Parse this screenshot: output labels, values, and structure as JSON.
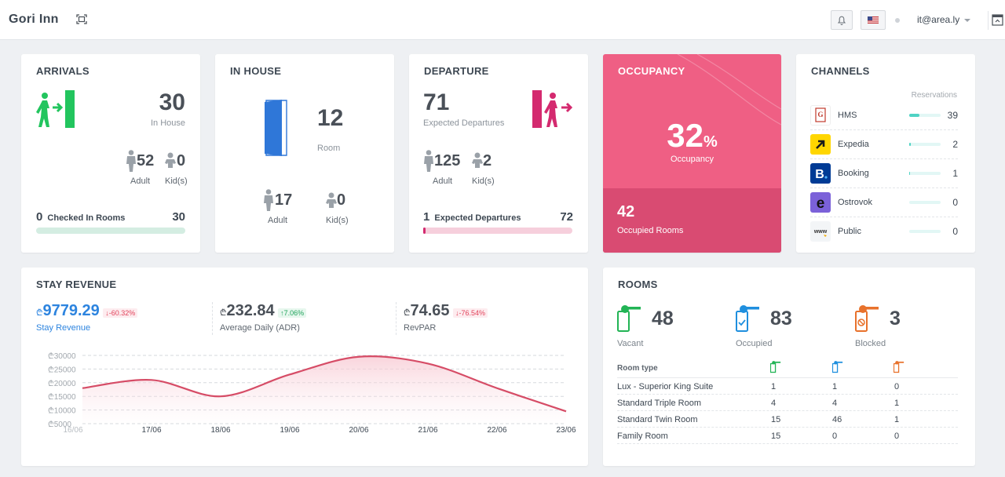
{
  "header": {
    "brand": "Gori Inn",
    "user": "it@area.ly",
    "icons": [
      "expand-icon",
      "bell-icon",
      "us-flag-icon",
      "sidebar-toggle-icon"
    ]
  },
  "arrivals": {
    "title": "ARRIVALS",
    "total": "30",
    "total_label": "In House",
    "adult": "52",
    "adult_label": "Adult",
    "kids": "0",
    "kids_label": "Kid(s)",
    "checked_count": "0",
    "checked_label": "Checked In Rooms",
    "checked_total": "30",
    "progress": 0
  },
  "inhouse": {
    "title": "IN HOUSE",
    "rooms": "12",
    "rooms_label": "Room",
    "adult": "17",
    "adult_label": "Adult",
    "kids": "0",
    "kids_label": "Kid(s)"
  },
  "departure": {
    "title": "DEPARTURE",
    "expected": "71",
    "expected_label": "Expected Departures",
    "adult": "125",
    "adult_label": "Adult",
    "kids": "2",
    "kids_label": "Kid(s)",
    "done_count": "1",
    "done_label": "Expected Departures",
    "done_total": "72",
    "progress": 0.014
  },
  "occupancy": {
    "title": "OCCUPANCY",
    "percent": "32",
    "percent_sign": "%",
    "percent_label": "Occupancy",
    "occupied": "42",
    "occupied_label": "Occupied Rooms"
  },
  "channels": {
    "title": "CHANNELS",
    "column_label": "Reservations",
    "items": [
      {
        "name": "HMS",
        "value": "39",
        "share": 1.0,
        "logo": "hms-logo-icon"
      },
      {
        "name": "Expedia",
        "value": "2",
        "share": 0.05,
        "logo": "expedia-logo-icon"
      },
      {
        "name": "Booking",
        "value": "1",
        "share": 0.03,
        "logo": "booking-logo-icon"
      },
      {
        "name": "Ostrovok",
        "value": "0",
        "share": 0,
        "logo": "ostrovok-logo-icon"
      },
      {
        "name": "Public",
        "value": "0",
        "share": 0,
        "logo": "public-www-logo-icon"
      }
    ]
  },
  "revenue": {
    "title": "STAY REVENUE",
    "currency": "₾",
    "stay_value": "9779.29",
    "stay_change": "↓-60.32%",
    "stay_label": "Stay Revenue",
    "adr_value": "232.84",
    "adr_change": "↑7.06%",
    "adr_label": "Average Daily (ADR)",
    "revpar_value": "74.65",
    "revpar_change": "↓-76.54%",
    "revpar_label": "RevPAR"
  },
  "chart_data": {
    "type": "area",
    "x": [
      "16/06",
      "17/06",
      "18/06",
      "19/06",
      "20/06",
      "21/06",
      "22/06",
      "23/06"
    ],
    "series": [
      {
        "values": [
          18000,
          21000,
          15000,
          23000,
          29500,
          27000,
          18000,
          9500
        ]
      }
    ],
    "ylim": [
      5000,
      30000
    ],
    "yticks": [
      "₾30000",
      "₾25000",
      "₾20000",
      "₾15000",
      "₾10000",
      "₾5000"
    ],
    "color": "#d64c66",
    "grid": true
  },
  "rooms": {
    "title": "ROOMS",
    "vacant": "48",
    "vacant_label": "Vacant",
    "occupied": "83",
    "occupied_label": "Occupied",
    "blocked": "3",
    "blocked_label": "Blocked",
    "type_header": "Room type",
    "rows": [
      {
        "type": "Lux - Superior King Suite",
        "vacant": "1",
        "occupied": "1",
        "blocked": "0"
      },
      {
        "type": "Standard Triple Room",
        "vacant": "4",
        "occupied": "4",
        "blocked": "1"
      },
      {
        "type": "Standard Twin Room",
        "vacant": "15",
        "occupied": "46",
        "blocked": "1"
      },
      {
        "type": "Family Room",
        "vacant": "15",
        "occupied": "0",
        "blocked": "0"
      }
    ],
    "colors": {
      "vacant": "#22b455",
      "occupied": "#1f8fde",
      "blocked": "#e8722c"
    }
  }
}
